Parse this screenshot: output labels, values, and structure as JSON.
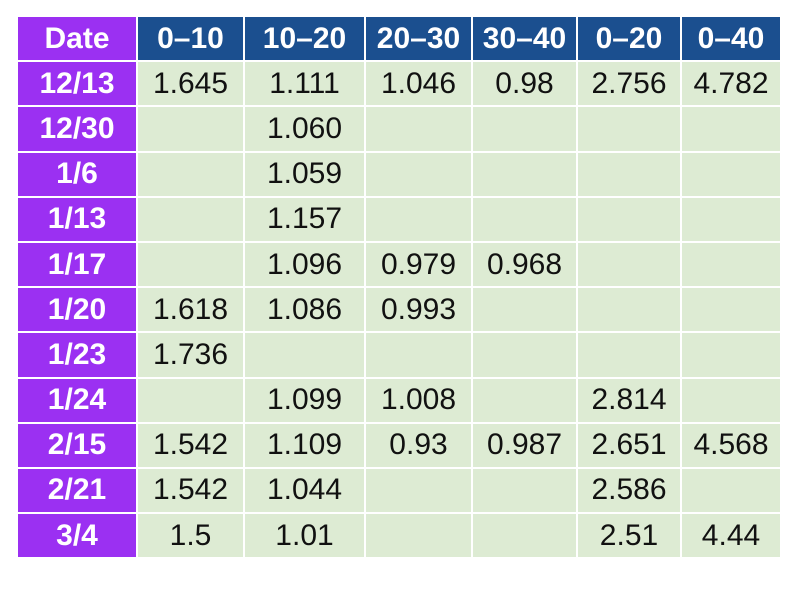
{
  "colors": {
    "header_bg": "#1b4f8f",
    "row_header_bg": "#9b30f2",
    "cell_bg": "#ddebd3",
    "header_text": "#ffffff",
    "cell_text": "#111111"
  },
  "chart_data": {
    "type": "table",
    "columns": [
      "Date",
      "0–10",
      "10–20",
      "20–30",
      "30–40",
      "0–20",
      "0–40"
    ],
    "rows": [
      {
        "label": "12/13",
        "values": [
          "1.645",
          "1.111",
          "1.046",
          "0.98",
          "2.756",
          "4.782"
        ]
      },
      {
        "label": "12/30",
        "values": [
          "",
          "1.060",
          "",
          "",
          "",
          ""
        ]
      },
      {
        "label": "1/6",
        "values": [
          "",
          "1.059",
          "",
          "",
          "",
          ""
        ]
      },
      {
        "label": "1/13",
        "values": [
          "",
          "1.157",
          "",
          "",
          "",
          ""
        ]
      },
      {
        "label": "1/17",
        "values": [
          "",
          "1.096",
          "0.979",
          "0.968",
          "",
          ""
        ]
      },
      {
        "label": "1/20",
        "values": [
          "1.618",
          "1.086",
          "0.993",
          "",
          "",
          ""
        ]
      },
      {
        "label": "1/23",
        "values": [
          "1.736",
          "",
          "",
          "",
          "",
          ""
        ]
      },
      {
        "label": "1/24",
        "values": [
          "",
          "1.099",
          "1.008",
          "",
          "2.814",
          ""
        ]
      },
      {
        "label": "2/15",
        "values": [
          "1.542",
          "1.109",
          "0.93",
          "0.987",
          "2.651",
          "4.568"
        ]
      },
      {
        "label": "2/21",
        "values": [
          "1.542",
          "1.044",
          "",
          "",
          "2.586",
          ""
        ]
      },
      {
        "label": "3/4",
        "values": [
          "1.5",
          "1.01",
          "",
          "",
          "2.51",
          "4.44"
        ]
      }
    ]
  }
}
